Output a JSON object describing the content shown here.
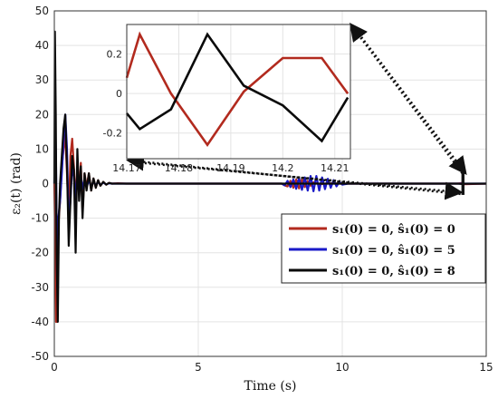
{
  "chart_data": [
    {
      "type": "line",
      "role": "main",
      "xlabel": "Time (s)",
      "ylabel": "ε₂(t) (rad)",
      "xlim": [
        0,
        15
      ],
      "ylim": [
        -50,
        50
      ],
      "xticks": [
        0,
        5,
        10,
        15
      ],
      "yticks": [
        -50,
        -40,
        -30,
        -20,
        -10,
        0,
        10,
        20,
        30,
        40,
        50
      ],
      "grid": true,
      "legend_position": "lower-right",
      "series": [
        {
          "name": "s₁(0) = 0, ŝ₁(0) = 0",
          "color": "#b22a1e",
          "x": [
            0,
            0.03,
            0.06,
            0.1,
            0.14,
            0.2,
            0.26,
            0.32,
            0.38,
            0.44,
            0.5,
            0.56,
            0.62,
            0.68,
            0.74,
            0.8,
            0.86,
            0.92,
            0.98,
            1.05,
            1.12,
            1.2,
            1.28,
            1.36,
            1.44,
            1.52,
            1.6,
            1.7,
            1.8,
            1.9,
            2.0,
            2.2,
            2.5,
            3,
            4,
            5,
            6,
            7,
            7.9,
            8.0,
            8.1,
            8.2,
            8.3,
            8.4,
            8.5,
            8.6,
            8.7,
            8.8,
            8.9,
            9.0,
            9.2,
            9.5,
            10,
            11,
            12,
            13,
            14,
            14.17,
            14.175,
            14.18,
            14.185,
            14.19,
            14.195,
            14.2,
            14.205,
            14.21,
            14.213,
            15
          ],
          "y": [
            0,
            -15,
            -40,
            -40,
            -12,
            -5,
            5,
            10,
            14,
            3,
            -10,
            8,
            13,
            5,
            -5,
            4,
            -2,
            6,
            -8,
            3,
            -1,
            3,
            -2,
            1.5,
            -1.2,
            1,
            -0.6,
            0.5,
            -0.3,
            0.2,
            0,
            0.1,
            0,
            0,
            0,
            0,
            0,
            0,
            0,
            -0.5,
            -0.8,
            0.8,
            -1.2,
            1.2,
            -1.4,
            1.2,
            -1,
            0.8,
            -0.6,
            0.4,
            -0.2,
            0.1,
            0,
            0,
            0,
            0,
            0,
            0.2,
            0.28,
            0,
            -0.26,
            0.18,
            0.18,
            0.18,
            0,
            0.2,
            -0.18,
            0
          ]
        },
        {
          "name": "s₁(0) = 0, ŝ₁(0) = 5",
          "color": "#1a1ac8",
          "x": [
            0,
            0.03,
            0.06,
            0.1,
            0.14,
            0.2,
            0.26,
            0.32,
            0.38,
            0.44,
            0.5,
            0.56,
            0.62,
            0.68,
            0.74,
            0.8,
            0.86,
            0.92,
            0.98,
            1.05,
            1.12,
            1.2,
            1.28,
            1.36,
            1.44,
            1.52,
            1.6,
            1.7,
            1.8,
            1.9,
            2.0,
            2.2,
            2.5,
            3,
            4,
            5,
            6,
            7,
            7.9,
            8.0,
            8.1,
            8.2,
            8.3,
            8.4,
            8.5,
            8.6,
            8.7,
            8.8,
            8.9,
            9.0,
            9.1,
            9.2,
            9.3,
            9.4,
            9.5,
            9.6,
            9.7,
            9.8,
            9.9,
            10,
            10.2,
            11,
            12,
            13,
            14,
            15
          ],
          "y": [
            0,
            20,
            5,
            -30,
            -10,
            -5,
            3,
            12,
            20,
            10,
            -12,
            -5,
            5,
            2,
            -4,
            3,
            -2,
            2,
            -1.5,
            1.5,
            -1,
            1,
            -1,
            0.8,
            -0.6,
            0.6,
            -0.4,
            0.3,
            -0.2,
            0.1,
            0,
            0,
            0,
            0,
            0,
            0,
            0,
            0,
            0,
            -0.5,
            0.8,
            -1,
            1.2,
            -1.5,
            1.6,
            -1.8,
            1.8,
            -2,
            2.2,
            -2.2,
            2.2,
            -2,
            1.8,
            -1.6,
            1.4,
            -1.2,
            1,
            -0.8,
            0.5,
            -0.3,
            0,
            0,
            0,
            0,
            0,
            0
          ]
        },
        {
          "name": "s₁(0) = 0, ŝ₁(0) = 8",
          "color": "#0a0a0a",
          "x": [
            0,
            0.02,
            0.05,
            0.08,
            0.12,
            0.16,
            0.2,
            0.26,
            0.32,
            0.38,
            0.44,
            0.5,
            0.56,
            0.62,
            0.68,
            0.74,
            0.8,
            0.86,
            0.92,
            0.98,
            1.05,
            1.12,
            1.2,
            1.28,
            1.36,
            1.44,
            1.52,
            1.6,
            1.7,
            1.8,
            1.9,
            2.0,
            2.2,
            2.5,
            3,
            4,
            5,
            6,
            7,
            8,
            9,
            10,
            11,
            12,
            13,
            14,
            14.17,
            14.175,
            14.18,
            14.185,
            14.19,
            14.195,
            14.2,
            14.205,
            14.21,
            14.213,
            15
          ],
          "y": [
            0,
            44,
            20,
            -20,
            -40,
            -10,
            0,
            8,
            16,
            20,
            5,
            -18,
            -5,
            8,
            4,
            -20,
            10,
            -5,
            5,
            -10,
            3,
            -2,
            3,
            -2,
            1.5,
            -1.2,
            1,
            -0.6,
            0.5,
            -0.3,
            0.2,
            0,
            0,
            0,
            0,
            0,
            0,
            0,
            0,
            0,
            0,
            0,
            0,
            0,
            0,
            0,
            -0.12,
            -0.18,
            -0.08,
            0.1,
            0.28,
            0.1,
            -0.06,
            -0.14,
            -0.24,
            -0.02,
            0
          ]
        }
      ]
    },
    {
      "type": "line",
      "role": "inset",
      "xlim": [
        14.17,
        14.213
      ],
      "ylim": [
        -0.33,
        0.35
      ],
      "xticks": [
        14.17,
        14.18,
        14.19,
        14.2,
        14.21
      ],
      "xtick_labels": [
        "14.17",
        "14.18",
        "14.19",
        "14.2",
        "14.21"
      ],
      "yticks": [
        -0.2,
        0,
        0.2
      ],
      "ytick_labels": [
        "-0.2",
        "0",
        "0.2"
      ],
      "grid": true,
      "series": [
        {
          "color": "#b22a1e",
          "x": [
            14.17,
            14.1725,
            14.1785,
            14.1855,
            14.1925,
            14.2,
            14.2075,
            14.2125
          ],
          "y": [
            0.08,
            0.3,
            0,
            -0.26,
            0.01,
            0.18,
            0.18,
            0
          ]
        },
        {
          "color": "#0a0a0a",
          "x": [
            14.17,
            14.1725,
            14.1785,
            14.1855,
            14.1925,
            14.2,
            14.2075,
            14.2125
          ],
          "y": [
            -0.1,
            -0.18,
            -0.08,
            0.3,
            0.04,
            -0.06,
            -0.24,
            -0.02
          ]
        }
      ]
    }
  ],
  "annotations": {
    "main_zoom_box": {
      "x": [
        14.17,
        14.213
      ],
      "y": [
        -3,
        3
      ]
    }
  }
}
